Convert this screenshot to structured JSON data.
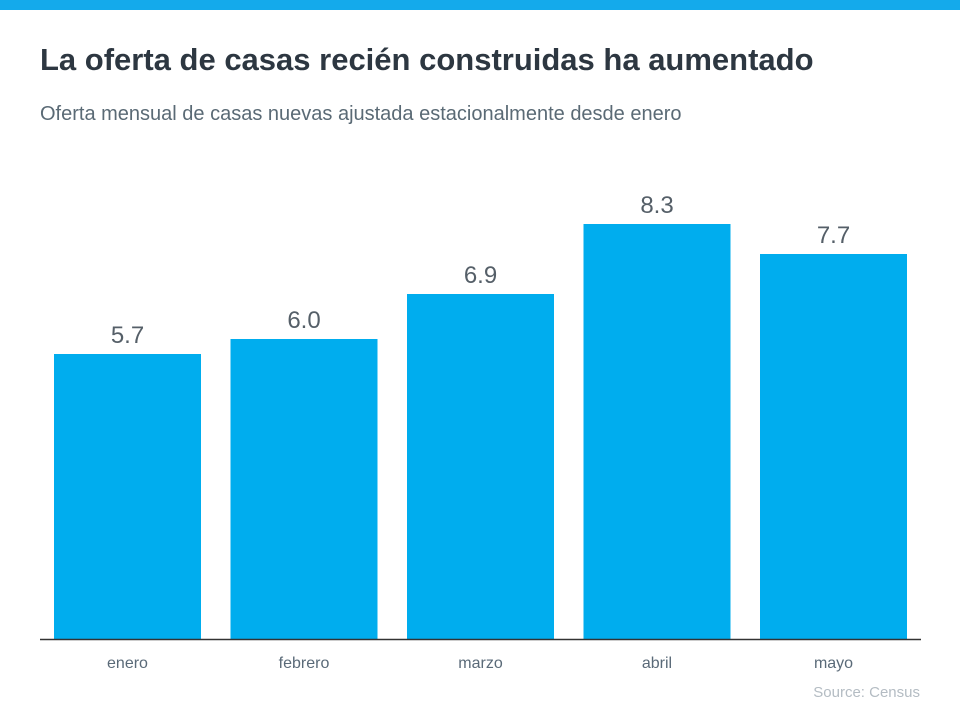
{
  "title": "La oferta de casas recién construidas ha aumentado",
  "subtitle": "Oferta mensual de casas nuevas ajustada estacionalmente desde enero",
  "source": "Source: Census",
  "colors": {
    "bar": "#00adee",
    "topbar": "#14aaeb",
    "axis": "#333333"
  },
  "chart_data": {
    "type": "bar",
    "categories": [
      "enero",
      "febrero",
      "marzo",
      "abril",
      "mayo"
    ],
    "values": [
      5.7,
      6.0,
      6.9,
      8.3,
      7.7
    ],
    "data_labels": [
      "5.7",
      "6.0",
      "6.9",
      "8.3",
      "7.7"
    ],
    "title": "La oferta de casas recién construidas ha aumentado",
    "xlabel": "",
    "ylabel": "",
    "ylim": [
      0,
      10
    ],
    "grid": false
  }
}
